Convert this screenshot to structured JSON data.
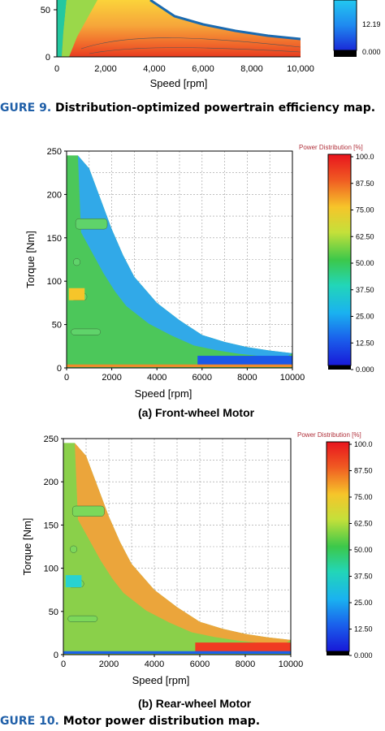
{
  "figure9": {
    "xlabel": "Speed [rpm]",
    "xticks": [
      "0",
      "2,000",
      "4,000",
      "6,000",
      "8,000",
      "10,000"
    ],
    "yticks": [
      "0",
      "50"
    ],
    "colorbar_ticks": [
      "12.19",
      "0.000"
    ],
    "caption_label": "GURE 9.",
    "caption_text": "Distribution-optimized powertrain efficiency map."
  },
  "figure10": {
    "caption_label": "GURE 10.",
    "caption_text": "Motor power distribution map."
  },
  "chart_data": [
    {
      "type": "heatmap",
      "title": "",
      "subtitle": "(a) Front-wheel Motor",
      "xlabel": "Speed [rpm]",
      "ylabel": "Torque [Nm]",
      "xlim": [
        0,
        10000
      ],
      "ylim": [
        0,
        250
      ],
      "xticks": [
        "0",
        "2000",
        "4000",
        "6000",
        "8000",
        "10000"
      ],
      "yticks": [
        "0",
        "50",
        "100",
        "150",
        "200",
        "250"
      ],
      "colorbar_title": "Power Distribution [%]",
      "colorbar_ticks": [
        "100.0",
        "87.50",
        "75.00",
        "62.50",
        "50.00",
        "37.50",
        "25.00",
        "12.50",
        "0.000"
      ],
      "torque_limit": [
        [
          0,
          245
        ],
        [
          500,
          245
        ],
        [
          1000,
          230
        ],
        [
          1500,
          195
        ],
        [
          2000,
          160
        ],
        [
          2500,
          130
        ],
        [
          3000,
          105
        ],
        [
          4000,
          75
        ],
        [
          5000,
          55
        ],
        [
          6000,
          38
        ],
        [
          7000,
          30
        ],
        [
          8000,
          24
        ],
        [
          9000,
          20
        ],
        [
          10000,
          17
        ]
      ],
      "band_color": "#2fa8f0",
      "high_speed_color": "#1b58e8",
      "body_color": "#4cc75a"
    },
    {
      "type": "heatmap",
      "title": "",
      "subtitle": "(b) Rear-wheel Motor",
      "xlabel": "Speed [rpm]",
      "ylabel": "Torque [Nm]",
      "xlim": [
        0,
        10000
      ],
      "ylim": [
        0,
        250
      ],
      "xticks": [
        "0",
        "2000",
        "4000",
        "6000",
        "8000",
        "10000"
      ],
      "yticks": [
        "0",
        "50",
        "100",
        "150",
        "200",
        "250"
      ],
      "colorbar_title": "Power Distribution [%]",
      "colorbar_ticks": [
        "100.0",
        "87.50",
        "75.00",
        "62.50",
        "50.00",
        "37.50",
        "25.00",
        "12.50",
        "0.000"
      ],
      "torque_limit": [
        [
          0,
          245
        ],
        [
          500,
          245
        ],
        [
          1000,
          230
        ],
        [
          1500,
          195
        ],
        [
          2000,
          160
        ],
        [
          2500,
          130
        ],
        [
          3000,
          105
        ],
        [
          4000,
          75
        ],
        [
          5000,
          55
        ],
        [
          6000,
          38
        ],
        [
          7000,
          30
        ],
        [
          8000,
          24
        ],
        [
          9000,
          20
        ],
        [
          10000,
          17
        ]
      ],
      "band_color": "#f0a23a",
      "high_speed_color": "#f03a22",
      "body_color": "#8ad04a"
    }
  ]
}
